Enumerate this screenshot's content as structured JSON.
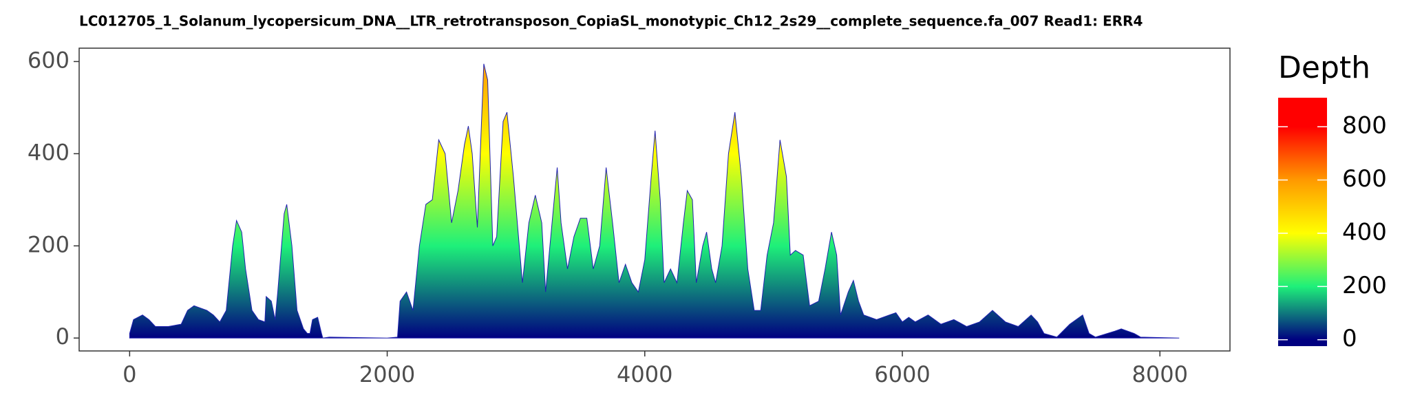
{
  "chart_data": {
    "type": "area",
    "title": "LC012705_1_Solanum_lycopersicum_DNA__LTR_retrotransposon_CopiaSL_monotypic_Ch12_2s29__complete_sequence.fa_007   Read1: ERR4",
    "legend_title": "Depth",
    "x": [
      0,
      30,
      100,
      150,
      200,
      300,
      400,
      450,
      500,
      550,
      600,
      650,
      700,
      750,
      800,
      830,
      870,
      900,
      950,
      1000,
      1050,
      1060,
      1100,
      1130,
      1150,
      1200,
      1220,
      1260,
      1300,
      1350,
      1380,
      1400,
      1420,
      1460,
      1490,
      1500,
      1550,
      2000,
      2080,
      2100,
      2150,
      2200,
      2250,
      2300,
      2350,
      2400,
      2450,
      2500,
      2550,
      2600,
      2630,
      2660,
      2700,
      2750,
      2780,
      2820,
      2850,
      2900,
      2930,
      2980,
      3050,
      3100,
      3150,
      3200,
      3230,
      3280,
      3320,
      3350,
      3400,
      3450,
      3500,
      3550,
      3600,
      3650,
      3700,
      3750,
      3800,
      3850,
      3900,
      3950,
      4000,
      4050,
      4080,
      4120,
      4150,
      4200,
      4250,
      4300,
      4330,
      4370,
      4400,
      4450,
      4480,
      4520,
      4550,
      4600,
      4650,
      4700,
      4750,
      4800,
      4850,
      4900,
      4950,
      5000,
      5050,
      5100,
      5130,
      5170,
      5230,
      5280,
      5350,
      5400,
      5450,
      5490,
      5520,
      5580,
      5620,
      5660,
      5700,
      5800,
      5900,
      5950,
      6000,
      6050,
      6100,
      6200,
      6300,
      6400,
      6500,
      6600,
      6700,
      6800,
      6900,
      7000,
      7050,
      7100,
      7200,
      7300,
      7400,
      7450,
      7500,
      7650,
      7700,
      7800,
      7850,
      8150
    ],
    "values": [
      10,
      40,
      50,
      40,
      25,
      25,
      30,
      60,
      70,
      65,
      60,
      50,
      35,
      60,
      200,
      255,
      230,
      150,
      60,
      40,
      35,
      90,
      80,
      40,
      100,
      270,
      290,
      200,
      60,
      20,
      10,
      10,
      40,
      45,
      10,
      0,
      2,
      0,
      2,
      80,
      100,
      60,
      200,
      290,
      300,
      430,
      400,
      250,
      320,
      420,
      460,
      400,
      240,
      595,
      560,
      200,
      220,
      470,
      490,
      350,
      120,
      250,
      310,
      250,
      100,
      250,
      370,
      250,
      150,
      220,
      260,
      260,
      150,
      200,
      370,
      250,
      120,
      160,
      120,
      100,
      170,
      350,
      450,
      300,
      120,
      150,
      120,
      250,
      320,
      300,
      120,
      200,
      230,
      150,
      120,
      200,
      400,
      490,
      350,
      150,
      60,
      60,
      180,
      250,
      430,
      350,
      180,
      190,
      180,
      70,
      80,
      150,
      230,
      180,
      50,
      100,
      125,
      80,
      50,
      40,
      50,
      55,
      35,
      45,
      35,
      50,
      30,
      40,
      25,
      35,
      60,
      35,
      25,
      50,
      35,
      10,
      2,
      30,
      50,
      10,
      2,
      15,
      20,
      10,
      2,
      0
    ],
    "xlim": [
      -392,
      8544
    ],
    "ylim": [
      -28,
      629
    ],
    "xticks": [
      0,
      2000,
      4000,
      6000,
      8000
    ],
    "yticks": [
      0,
      200,
      400,
      600
    ],
    "color_lim": [
      -24,
      909
    ],
    "color_ticks": [
      0,
      200,
      400,
      600,
      800
    ],
    "color_stops": [
      {
        "value": 0,
        "color": "#000080"
      },
      {
        "value": 200,
        "color": "#1ef07a"
      },
      {
        "value": 400,
        "color": "#ffff00"
      },
      {
        "value": 600,
        "color": "#ff9900"
      },
      {
        "value": 800,
        "color": "#ff0000"
      }
    ]
  }
}
